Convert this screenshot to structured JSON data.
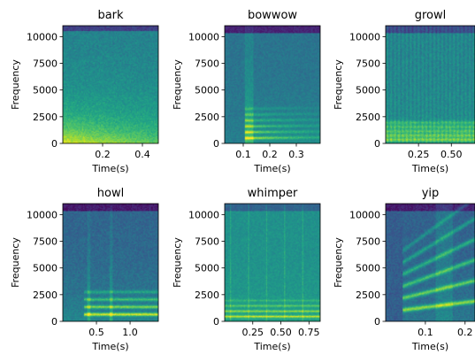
{
  "chart_data": [
    {
      "type": "heatmap",
      "title": "bark",
      "xlabel": "Time(s)",
      "ylabel": "Frequency",
      "xlim": [
        0.0,
        0.48
      ],
      "ylim": [
        0,
        11025
      ],
      "xticks": [
        0.2,
        0.4
      ],
      "xtick_labels": [
        "0.2",
        "0.4"
      ],
      "yticks": [
        0,
        2500,
        5000,
        7500,
        10000
      ],
      "ytick_labels": [
        "0",
        "2500",
        "5000",
        "7500",
        "10000"
      ],
      "colormap": "viridis",
      "energy_profile": "broadband low-frequency energy concentrated below 2500 Hz"
    },
    {
      "type": "heatmap",
      "title": "bowwow",
      "xlabel": "Time(s)",
      "ylabel": "Frequency",
      "xlim": [
        0.03,
        0.39
      ],
      "ylim": [
        0,
        11025
      ],
      "xticks": [
        0.1,
        0.2,
        0.3
      ],
      "xtick_labels": [
        "0.1",
        "0.2",
        "0.3"
      ],
      "yticks": [
        0,
        2500,
        5000,
        7500,
        10000
      ],
      "ytick_labels": [
        "0",
        "2500",
        "5000",
        "7500",
        "10000"
      ],
      "colormap": "viridis",
      "energy_profile": "harmonic bands below 3500 Hz from 0.1 s"
    },
    {
      "type": "heatmap",
      "title": "growl",
      "xlabel": "Time(s)",
      "ylabel": "Frequency",
      "xlim": [
        0.0,
        0.68
      ],
      "ylim": [
        0,
        11025
      ],
      "xticks": [
        0.25,
        0.5
      ],
      "xtick_labels": [
        "0.25",
        "0.50"
      ],
      "yticks": [
        0,
        2500,
        5000,
        7500,
        10000
      ],
      "ytick_labels": [
        "0",
        "2500",
        "5000",
        "7500",
        "10000"
      ],
      "colormap": "viridis",
      "energy_profile": "dense low bands with vertical pulse striations"
    },
    {
      "type": "heatmap",
      "title": "howl",
      "xlabel": "Time(s)",
      "ylabel": "Frequency",
      "xlim": [
        0.0,
        1.42
      ],
      "ylim": [
        0,
        11025
      ],
      "xticks": [
        0.5,
        1.0
      ],
      "xtick_labels": [
        "0.5",
        "1.0"
      ],
      "yticks": [
        0,
        2500,
        5000,
        7500,
        10000
      ],
      "ytick_labels": [
        "0",
        "2500",
        "5000",
        "7500",
        "10000"
      ],
      "colormap": "viridis",
      "energy_profile": "sustained harmonic bands near 700, 1400 and 2100 Hz"
    },
    {
      "type": "heatmap",
      "title": "whimper",
      "xlabel": "Time(s)",
      "ylabel": "Frequency",
      "xlim": [
        0.0,
        0.85
      ],
      "ylim": [
        0,
        11025
      ],
      "xticks": [
        0.25,
        0.5,
        0.75
      ],
      "xtick_labels": [
        "0.25",
        "0.50",
        "0.75"
      ],
      "yticks": [
        0,
        2500,
        5000,
        7500,
        10000
      ],
      "ytick_labels": [
        "0",
        "2500",
        "5000",
        "7500",
        "10000"
      ],
      "colormap": "viridis",
      "energy_profile": "narrow bright bands below 2000 Hz with faint vertical lines"
    },
    {
      "type": "heatmap",
      "title": "yip",
      "xlabel": "Time(s)",
      "ylabel": "Frequency",
      "xlim": [
        0.0,
        0.225
      ],
      "ylim": [
        0,
        11025
      ],
      "xticks": [
        0.1,
        0.2
      ],
      "xtick_labels": [
        "0.1",
        "0.2"
      ],
      "yticks": [
        0,
        2500,
        5000,
        7500,
        10000
      ],
      "ytick_labels": [
        "0",
        "2500",
        "5000",
        "7500",
        "10000"
      ],
      "colormap": "viridis",
      "energy_profile": "rising harmonic sweeps starting near 0.04 s"
    }
  ]
}
